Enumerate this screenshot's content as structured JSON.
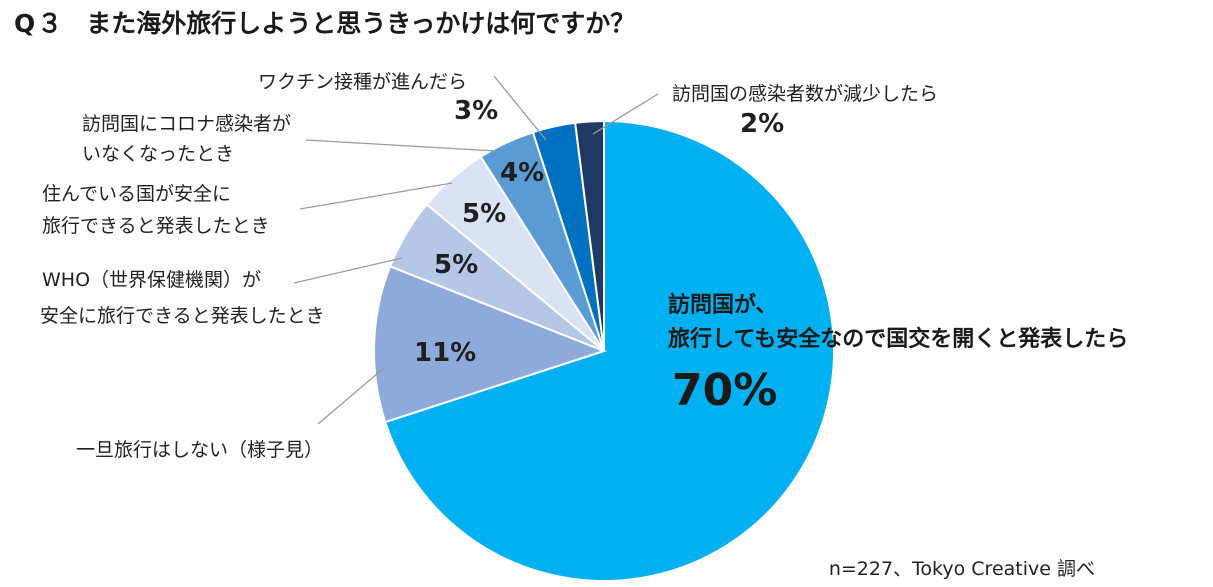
{
  "title": {
    "number": "Q３",
    "question": "また海外旅行しようと思うきっかけは何ですか？"
  },
  "note": "n=227、Tokyo Creative  調べ",
  "chart_data": {
    "type": "pie",
    "title": "",
    "slices": [
      {
        "label_lines": [
          "訪問国が、",
          "旅行しても安全なので国交を開くと発表したら"
        ],
        "value": 70,
        "display": "70%",
        "color": "#00b0f0"
      },
      {
        "label_lines": [
          "一旦旅行はしない（様子見）"
        ],
        "value": 11,
        "display": "11%",
        "color": "#8eaadb"
      },
      {
        "label_lines": [
          "WHO（世界保健機関）が",
          "安全に旅行できると発表したとき"
        ],
        "value": 5,
        "display": "5%",
        "color": "#b4c7e7"
      },
      {
        "label_lines": [
          "住んでいる国が安全に",
          "旅行できると発表したとき"
        ],
        "value": 5,
        "display": "5%",
        "color": "#dae3f3"
      },
      {
        "label_lines": [
          "訪問国にコロナ感染者が",
          "いなくなったとき"
        ],
        "value": 4,
        "display": "4%",
        "color": "#5b9bd5"
      },
      {
        "label_lines": [
          "ワクチン接種が進んだら"
        ],
        "value": 3,
        "display": "3%",
        "color": "#0070c0"
      },
      {
        "label_lines": [
          "訪問国の感染者数が減少したら"
        ],
        "value": 2,
        "display": "2%",
        "color": "#203864"
      }
    ]
  }
}
